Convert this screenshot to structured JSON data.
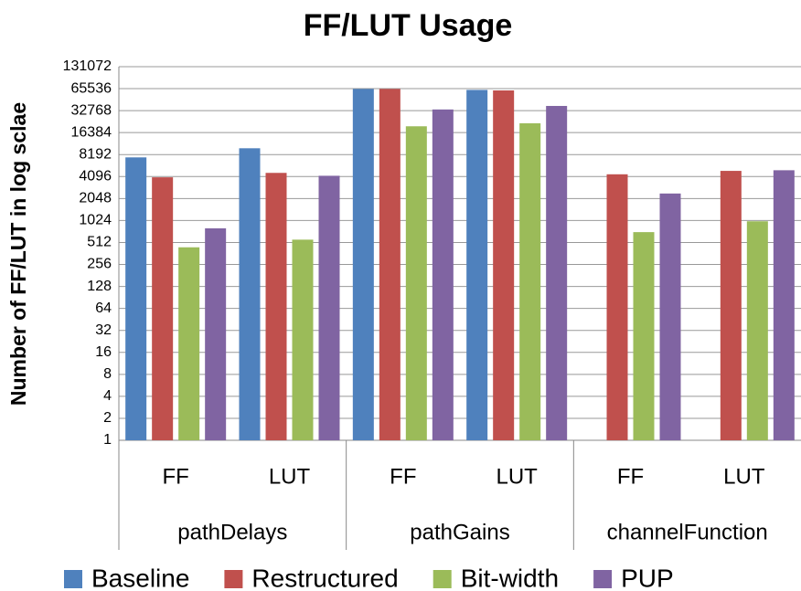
{
  "chart_data": {
    "type": "bar",
    "title": "FF/LUT Usage",
    "y_label": "Number of FF/LUT in log sclae",
    "categories": [
      "FF",
      "LUT",
      "FF",
      "LUT",
      "FF",
      "LUT"
    ],
    "groups": [
      "pathDelays",
      "pathGains",
      "channelFunction"
    ],
    "series": [
      {
        "name": "Baseline",
        "color": "#4f81bd",
        "values": [
          7500,
          10000,
          65000,
          63000,
          null,
          null
        ]
      },
      {
        "name": "Restructured",
        "color": "#c0504d",
        "values": [
          4000,
          4600,
          65000,
          62000,
          4400,
          4900
        ]
      },
      {
        "name": "Bit-width",
        "color": "#9bbb59",
        "values": [
          440,
          560,
          20000,
          22000,
          710,
          1000
        ]
      },
      {
        "name": "PUP",
        "color": "#8064a2",
        "values": [
          800,
          4200,
          34000,
          38000,
          2400,
          5000
        ]
      }
    ],
    "yscale": "log",
    "ylim": [
      1,
      131072
    ],
    "yticks": [
      1,
      2,
      4,
      8,
      16,
      32,
      64,
      128,
      256,
      512,
      1024,
      2048,
      4096,
      8192,
      16384,
      32768,
      65536,
      131072
    ],
    "grid": true,
    "legend": "bottom"
  }
}
